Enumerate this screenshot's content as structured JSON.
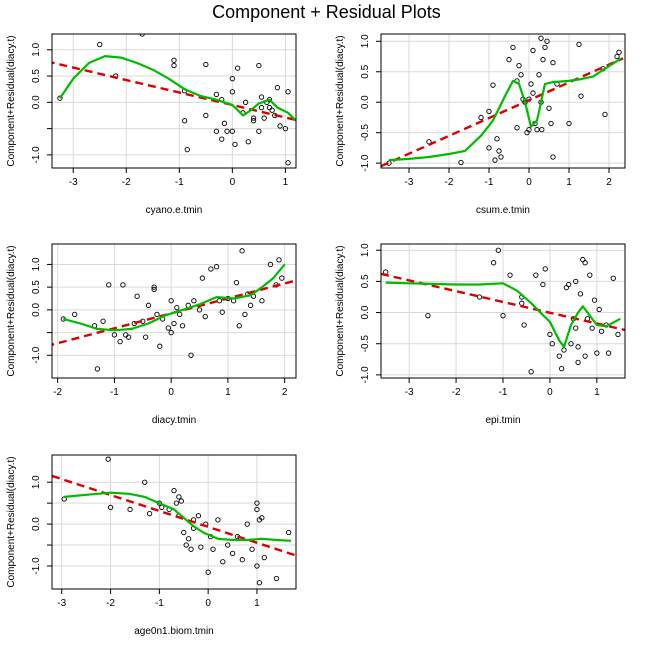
{
  "title": "Component + Residual Plots",
  "colors": {
    "fit": "#dd0000",
    "smooth": "#00bb00",
    "grid": "#d9d9d9",
    "points": "#000000"
  },
  "chart_data": [
    {
      "type": "scatter",
      "xlabel": "cyano.e.tmin",
      "ylabel": "Component+Residual(diacy.t)",
      "xlim": [
        -3.4,
        1.2
      ],
      "ylim": [
        -1.25,
        1.3
      ],
      "xticks": [
        -3,
        -2,
        -1,
        0,
        1
      ],
      "yticks": [
        -1.0,
        -0.5,
        0.0,
        0.5,
        1.0
      ],
      "yticklabels": [
        "-1.0",
        "",
        "0.0",
        "0.5",
        "1.0"
      ],
      "points": [
        [
          -3.25,
          0.08
        ],
        [
          -2.5,
          1.1
        ],
        [
          -2.2,
          0.5
        ],
        [
          -1.7,
          1.3
        ],
        [
          -1.1,
          0.8
        ],
        [
          -1.1,
          0.7
        ],
        [
          -0.9,
          0.22
        ],
        [
          -0.9,
          -0.35
        ],
        [
          -0.85,
          -0.9
        ],
        [
          -0.5,
          0.72
        ],
        [
          -0.5,
          -0.25
        ],
        [
          -0.3,
          0.15
        ],
        [
          -0.3,
          -0.55
        ],
        [
          -0.2,
          0.05
        ],
        [
          -0.2,
          -0.7
        ],
        [
          -0.15,
          -0.4
        ],
        [
          -0.1,
          -0.55
        ],
        [
          0.0,
          0.45
        ],
        [
          0.0,
          0.2
        ],
        [
          0.0,
          -0.55
        ],
        [
          0.05,
          -0.8
        ],
        [
          0.1,
          0.65
        ],
        [
          0.2,
          -0.2
        ],
        [
          0.25,
          0.0
        ],
        [
          0.3,
          -0.75
        ],
        [
          0.4,
          -0.3
        ],
        [
          0.5,
          -0.55
        ],
        [
          0.5,
          0.7
        ],
        [
          0.55,
          0.1
        ],
        [
          0.55,
          -0.1
        ],
        [
          0.6,
          -0.3
        ],
        [
          0.65,
          0.0
        ],
        [
          0.7,
          -0.1
        ],
        [
          0.75,
          -0.15
        ],
        [
          0.8,
          -0.25
        ],
        [
          0.85,
          0.28
        ],
        [
          0.9,
          -0.45
        ],
        [
          1.0,
          -0.5
        ],
        [
          1.05,
          -1.15
        ],
        [
          1.05,
          0.2
        ],
        [
          0.7,
          0.05
        ],
        [
          0.4,
          -0.35
        ]
      ],
      "fit_line": [
        [
          -3.5,
          0.78
        ],
        [
          1.3,
          -0.36
        ]
      ],
      "smooth": [
        [
          -3.25,
          0.08
        ],
        [
          -3.0,
          0.45
        ],
        [
          -2.7,
          0.75
        ],
        [
          -2.4,
          0.88
        ],
        [
          -2.1,
          0.85
        ],
        [
          -1.8,
          0.75
        ],
        [
          -1.5,
          0.62
        ],
        [
          -1.2,
          0.45
        ],
        [
          -0.9,
          0.25
        ],
        [
          -0.6,
          0.12
        ],
        [
          -0.3,
          0.05
        ],
        [
          0.0,
          -0.05
        ],
        [
          0.2,
          -0.25
        ],
        [
          0.35,
          -0.15
        ],
        [
          0.5,
          -0.02
        ],
        [
          0.7,
          0.05
        ],
        [
          0.85,
          -0.1
        ],
        [
          1.05,
          -0.2
        ],
        [
          1.2,
          -0.35
        ]
      ]
    },
    {
      "type": "scatter",
      "xlabel": "csum.e.tmin",
      "ylabel": "Component+Residual(diacy.t)",
      "xlim": [
        -3.7,
        2.4
      ],
      "ylim": [
        -1.08,
        1.12
      ],
      "xticks": [
        -3,
        -2,
        -1,
        0,
        1,
        2
      ],
      "yticks": [
        -1.0,
        -0.5,
        0.0,
        0.5,
        1.0
      ],
      "yticklabels": [
        "-1.0",
        "-0.5",
        "0.0",
        "0.5",
        "1.0"
      ],
      "points": [
        [
          -3.5,
          -1.0
        ],
        [
          -2.5,
          -0.65
        ],
        [
          -1.7,
          -0.99
        ],
        [
          -1.2,
          -0.25
        ],
        [
          -1.0,
          -0.15
        ],
        [
          -1.0,
          -0.75
        ],
        [
          -0.9,
          0.28
        ],
        [
          -0.85,
          -0.95
        ],
        [
          -0.8,
          -0.6
        ],
        [
          -0.75,
          -0.8
        ],
        [
          -0.7,
          -0.9
        ],
        [
          -0.5,
          0.7
        ],
        [
          -0.4,
          0.9
        ],
        [
          -0.3,
          0.35
        ],
        [
          -0.3,
          -0.42
        ],
        [
          -0.25,
          0.6
        ],
        [
          -0.2,
          0.45
        ],
        [
          -0.15,
          0.05
        ],
        [
          -0.1,
          0.0
        ],
        [
          -0.05,
          -0.5
        ],
        [
          0.0,
          -0.45
        ],
        [
          0.05,
          0.3
        ],
        [
          0.1,
          0.15
        ],
        [
          0.1,
          0.85
        ],
        [
          0.15,
          -0.35
        ],
        [
          0.2,
          -0.45
        ],
        [
          0.25,
          0.45
        ],
        [
          0.3,
          1.05
        ],
        [
          0.3,
          0.0
        ],
        [
          0.35,
          0.7
        ],
        [
          0.4,
          0.9
        ],
        [
          0.45,
          1.0
        ],
        [
          0.5,
          -0.1
        ],
        [
          0.55,
          -0.35
        ],
        [
          0.6,
          -0.9
        ],
        [
          0.6,
          0.65
        ],
        [
          0.7,
          0.3
        ],
        [
          1.0,
          -0.35
        ],
        [
          1.25,
          0.95
        ],
        [
          1.3,
          0.1
        ],
        [
          1.85,
          0.55
        ],
        [
          1.9,
          -0.2
        ],
        [
          2.2,
          0.75
        ],
        [
          2.25,
          0.82
        ],
        [
          0.0,
          0.05
        ],
        [
          0.32,
          -0.45
        ]
      ],
      "fit_line": [
        [
          -3.7,
          -1.05
        ],
        [
          2.35,
          0.72
        ]
      ],
      "smooth": [
        [
          -3.5,
          -0.95
        ],
        [
          -3.0,
          -0.93
        ],
        [
          -2.5,
          -0.9
        ],
        [
          -2.0,
          -0.85
        ],
        [
          -1.6,
          -0.8
        ],
        [
          -1.2,
          -0.55
        ],
        [
          -0.9,
          -0.3
        ],
        [
          -0.6,
          0.1
        ],
        [
          -0.4,
          0.35
        ],
        [
          -0.25,
          0.3
        ],
        [
          -0.1,
          0.0
        ],
        [
          0.05,
          -0.4
        ],
        [
          0.2,
          -0.3
        ],
        [
          0.3,
          0.0
        ],
        [
          0.4,
          0.3
        ],
        [
          0.6,
          0.33
        ],
        [
          1.0,
          0.35
        ],
        [
          1.3,
          0.38
        ],
        [
          1.6,
          0.42
        ],
        [
          1.9,
          0.55
        ],
        [
          2.3,
          0.72
        ]
      ]
    },
    {
      "type": "scatter",
      "xlabel": "diacy.tmin",
      "ylabel": "Component+Residual(diacy.t)",
      "xlim": [
        -2.1,
        2.2
      ],
      "ylim": [
        -1.5,
        1.45
      ],
      "xticks": [
        -2,
        -1,
        0,
        1,
        2
      ],
      "yticks": [
        -1.0,
        -0.5,
        0.0,
        0.5,
        1.0
      ],
      "yticklabels": [
        "-1.0",
        "",
        "0.0",
        "0.5",
        "1.0"
      ],
      "points": [
        [
          -1.9,
          -0.2
        ],
        [
          -1.7,
          -0.1
        ],
        [
          -1.35,
          -0.35
        ],
        [
          -1.3,
          -1.3
        ],
        [
          -1.2,
          -0.25
        ],
        [
          -1.0,
          -0.55
        ],
        [
          -0.9,
          -0.7
        ],
        [
          -0.8,
          -0.55
        ],
        [
          -0.75,
          -0.6
        ],
        [
          -0.65,
          -0.3
        ],
        [
          -0.6,
          0.3
        ],
        [
          -0.5,
          -0.25
        ],
        [
          -0.45,
          -0.6
        ],
        [
          -0.4,
          0.1
        ],
        [
          -0.3,
          0.5
        ],
        [
          -0.3,
          0.45
        ],
        [
          -0.25,
          -0.1
        ],
        [
          -0.2,
          -0.8
        ],
        [
          -0.15,
          -0.2
        ],
        [
          -0.05,
          -0.4
        ],
        [
          0.0,
          0.2
        ],
        [
          0.0,
          -0.5
        ],
        [
          0.05,
          -0.3
        ],
        [
          0.1,
          0.05
        ],
        [
          0.15,
          -0.1
        ],
        [
          0.2,
          -0.35
        ],
        [
          0.3,
          0.1
        ],
        [
          0.35,
          -1.0
        ],
        [
          0.4,
          0.2
        ],
        [
          0.5,
          0.0
        ],
        [
          0.55,
          0.7
        ],
        [
          0.6,
          -0.15
        ],
        [
          0.7,
          0.9
        ],
        [
          0.8,
          0.95
        ],
        [
          0.85,
          0.2
        ],
        [
          0.9,
          -0.05
        ],
        [
          1.0,
          0.25
        ],
        [
          1.1,
          0.2
        ],
        [
          1.15,
          0.6
        ],
        [
          1.2,
          -0.35
        ],
        [
          1.25,
          1.3
        ],
        [
          1.3,
          -0.1
        ],
        [
          1.35,
          0.35
        ],
        [
          1.4,
          0.1
        ],
        [
          1.45,
          0.3
        ],
        [
          1.6,
          0.2
        ],
        [
          1.75,
          1.0
        ],
        [
          1.85,
          0.55
        ],
        [
          1.9,
          1.1
        ],
        [
          1.95,
          0.7
        ],
        [
          -1.1,
          0.55
        ],
        [
          -0.85,
          0.55
        ]
      ],
      "fit_line": [
        [
          -2.2,
          -0.8
        ],
        [
          2.3,
          0.68
        ]
      ],
      "smooth": [
        [
          -1.9,
          -0.2
        ],
        [
          -1.6,
          -0.3
        ],
        [
          -1.3,
          -0.42
        ],
        [
          -1.0,
          -0.45
        ],
        [
          -0.7,
          -0.42
        ],
        [
          -0.4,
          -0.3
        ],
        [
          -0.1,
          -0.12
        ],
        [
          0.2,
          0.0
        ],
        [
          0.5,
          0.12
        ],
        [
          0.8,
          0.28
        ],
        [
          1.1,
          0.25
        ],
        [
          1.4,
          0.32
        ],
        [
          1.6,
          0.5
        ],
        [
          1.8,
          0.7
        ],
        [
          2.0,
          1.0
        ]
      ]
    },
    {
      "type": "scatter",
      "xlabel": "epi.tmin",
      "ylabel": "Component+Residual(diacy.t)",
      "xlim": [
        -3.6,
        1.6
      ],
      "ylim": [
        -1.05,
        1.1
      ],
      "xticks": [
        -3,
        -2,
        -1,
        0,
        1
      ],
      "yticks": [
        -1.0,
        -0.5,
        0.0,
        0.5,
        1.0
      ],
      "yticklabels": [
        "-1.0",
        "-0.5",
        "0.0",
        "0.5",
        "1.0"
      ],
      "points": [
        [
          -3.5,
          0.65
        ],
        [
          -2.6,
          -0.05
        ],
        [
          -1.5,
          0.25
        ],
        [
          -1.2,
          0.8
        ],
        [
          -1.1,
          1.0
        ],
        [
          -1.0,
          -0.05
        ],
        [
          -0.85,
          0.6
        ],
        [
          -0.6,
          0.25
        ],
        [
          -0.55,
          -0.2
        ],
        [
          -0.4,
          -0.95
        ],
        [
          -0.3,
          0.6
        ],
        [
          -0.15,
          0.45
        ],
        [
          -0.1,
          0.7
        ],
        [
          0.0,
          -0.35
        ],
        [
          0.05,
          -0.5
        ],
        [
          0.2,
          -0.7
        ],
        [
          0.25,
          -0.9
        ],
        [
          0.3,
          -0.6
        ],
        [
          0.4,
          0.45
        ],
        [
          0.45,
          -0.5
        ],
        [
          0.5,
          -0.1
        ],
        [
          0.55,
          -0.25
        ],
        [
          0.55,
          0.5
        ],
        [
          0.6,
          -0.8
        ],
        [
          0.65,
          0.3
        ],
        [
          0.7,
          0.85
        ],
        [
          0.75,
          0.8
        ],
        [
          0.75,
          -0.7
        ],
        [
          0.8,
          -0.1
        ],
        [
          0.85,
          0.6
        ],
        [
          0.9,
          -0.25
        ],
        [
          0.95,
          0.2
        ],
        [
          1.0,
          -0.65
        ],
        [
          1.05,
          0.05
        ],
        [
          1.1,
          -0.3
        ],
        [
          1.2,
          -0.2
        ],
        [
          1.25,
          -0.65
        ],
        [
          1.35,
          0.55
        ],
        [
          1.45,
          -0.35
        ],
        [
          0.35,
          0.4
        ],
        [
          -0.6,
          0.15
        ],
        [
          0.6,
          -0.55
        ]
      ],
      "fit_line": [
        [
          -3.6,
          0.62
        ],
        [
          1.6,
          -0.28
        ]
      ],
      "smooth": [
        [
          -3.5,
          0.48
        ],
        [
          -3.0,
          0.47
        ],
        [
          -2.5,
          0.46
        ],
        [
          -2.0,
          0.45
        ],
        [
          -1.5,
          0.45
        ],
        [
          -1.0,
          0.47
        ],
        [
          -0.7,
          0.35
        ],
        [
          -0.4,
          0.15
        ],
        [
          -0.2,
          0.0
        ],
        [
          0.0,
          -0.15
        ],
        [
          0.2,
          -0.45
        ],
        [
          0.3,
          -0.55
        ],
        [
          0.45,
          -0.2
        ],
        [
          0.6,
          0.0
        ],
        [
          0.7,
          0.1
        ],
        [
          0.85,
          -0.05
        ],
        [
          1.0,
          -0.2
        ],
        [
          1.2,
          -0.22
        ],
        [
          1.5,
          -0.1
        ]
      ]
    },
    {
      "type": "scatter",
      "xlabel": "age0n1.biom.tmin",
      "ylabel": "Component+Residual(diacy.t)",
      "xlim": [
        -3.2,
        1.8
      ],
      "ylim": [
        -1.55,
        1.65
      ],
      "xticks": [
        -3,
        -2,
        -1,
        0,
        1
      ],
      "yticks": [
        -1.0,
        -0.5,
        0.0,
        0.5,
        1.0
      ],
      "yticklabels": [
        "-1.0",
        "",
        "0.0",
        "",
        "1.0"
      ],
      "points": [
        [
          -2.95,
          0.6
        ],
        [
          -2.05,
          1.55
        ],
        [
          -2.0,
          0.4
        ],
        [
          -1.6,
          0.35
        ],
        [
          -1.3,
          1.0
        ],
        [
          -1.2,
          0.25
        ],
        [
          -1.0,
          0.5
        ],
        [
          -0.95,
          0.4
        ],
        [
          -0.8,
          0.35
        ],
        [
          -0.7,
          0.8
        ],
        [
          -0.65,
          0.5
        ],
        [
          -0.6,
          0.65
        ],
        [
          -0.6,
          0.2
        ],
        [
          -0.55,
          0.55
        ],
        [
          -0.5,
          -0.2
        ],
        [
          -0.45,
          -0.5
        ],
        [
          -0.4,
          -0.35
        ],
        [
          -0.35,
          -0.6
        ],
        [
          -0.3,
          0.1
        ],
        [
          -0.3,
          -0.1
        ],
        [
          -0.2,
          0.2
        ],
        [
          -0.15,
          -0.55
        ],
        [
          -0.05,
          0.0
        ],
        [
          0.0,
          -1.15
        ],
        [
          0.05,
          -0.3
        ],
        [
          0.1,
          -0.6
        ],
        [
          0.2,
          0.1
        ],
        [
          0.3,
          -0.9
        ],
        [
          0.4,
          -0.5
        ],
        [
          0.5,
          -0.7
        ],
        [
          0.6,
          -0.3
        ],
        [
          0.7,
          -0.85
        ],
        [
          0.8,
          0.0
        ],
        [
          0.9,
          -0.6
        ],
        [
          1.0,
          0.5
        ],
        [
          1.05,
          0.1
        ],
        [
          1.05,
          -1.4
        ],
        [
          1.1,
          0.15
        ],
        [
          1.15,
          -0.8
        ],
        [
          1.4,
          -1.3
        ],
        [
          1.65,
          -0.2
        ],
        [
          1.0,
          -1.0
        ],
        [
          1.0,
          0.35
        ]
      ],
      "fit_line": [
        [
          -3.2,
          1.15
        ],
        [
          1.8,
          -0.75
        ]
      ],
      "smooth": [
        [
          -2.95,
          0.65
        ],
        [
          -2.5,
          0.7
        ],
        [
          -2.0,
          0.75
        ],
        [
          -1.6,
          0.72
        ],
        [
          -1.3,
          0.65
        ],
        [
          -1.0,
          0.5
        ],
        [
          -0.7,
          0.35
        ],
        [
          -0.5,
          0.15
        ],
        [
          -0.3,
          -0.05
        ],
        [
          -0.1,
          -0.2
        ],
        [
          0.2,
          -0.35
        ],
        [
          0.5,
          -0.38
        ],
        [
          0.8,
          -0.38
        ],
        [
          1.1,
          -0.35
        ],
        [
          1.4,
          -0.38
        ],
        [
          1.7,
          -0.4
        ]
      ]
    }
  ]
}
